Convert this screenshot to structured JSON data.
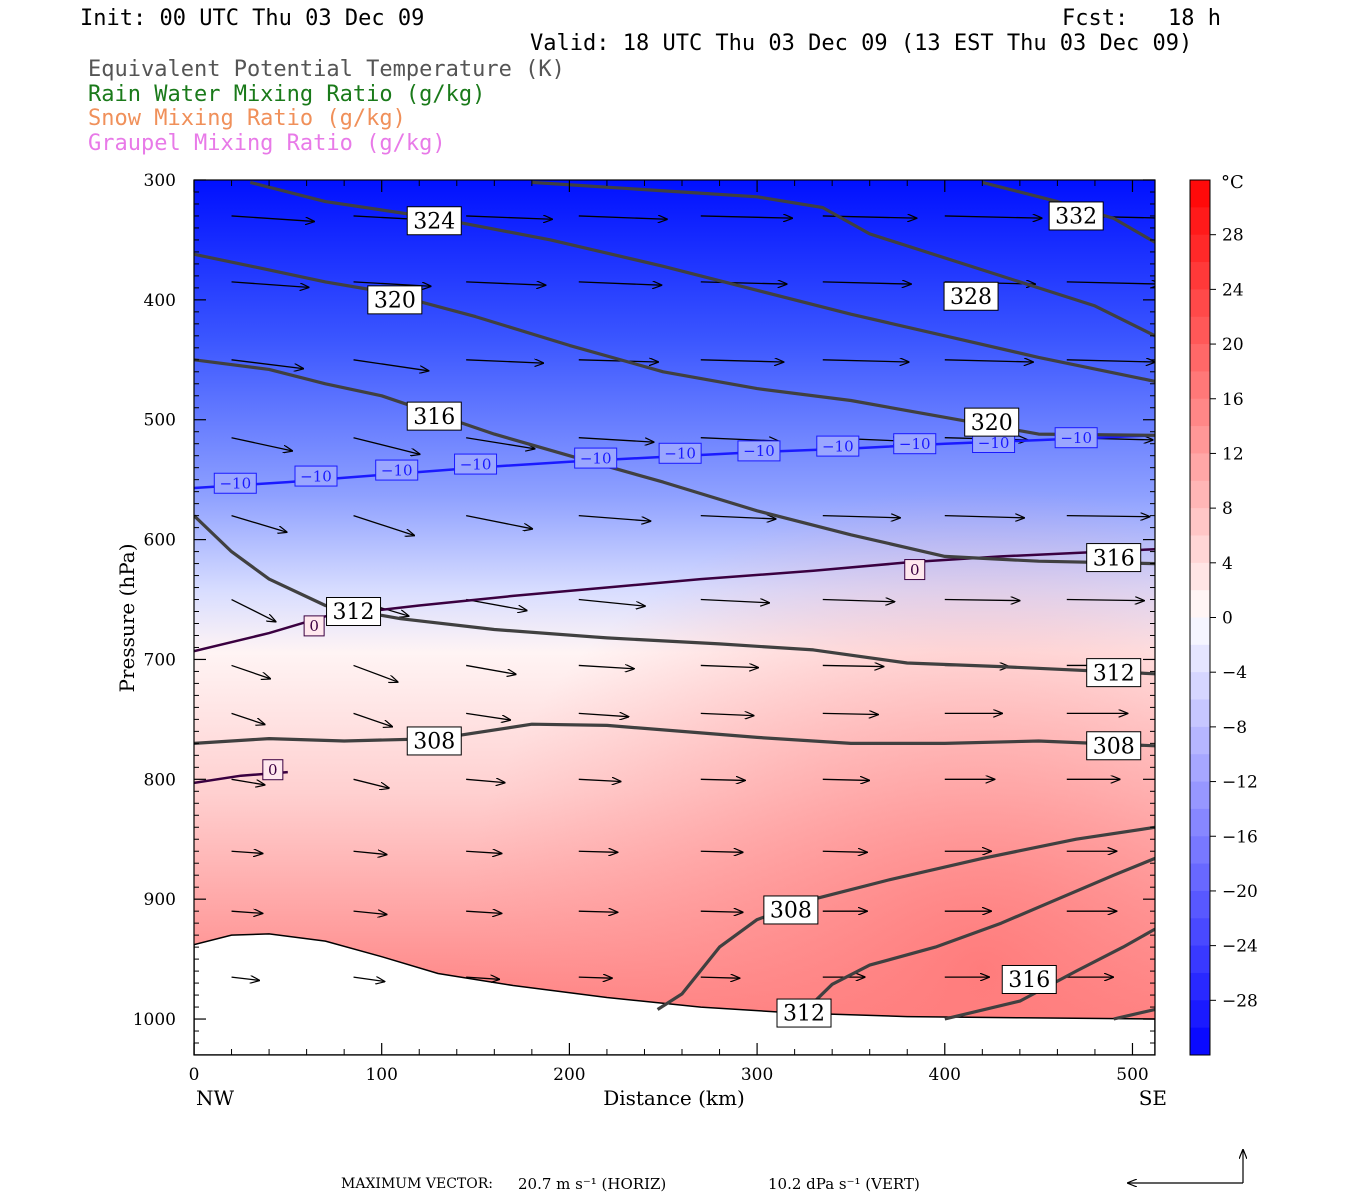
{
  "header": {
    "init": "Init: 00 UTC Thu 03 Dec 09",
    "fcst": "Fcst:   18 h",
    "valid": "Valid: 18 UTC Thu 03 Dec 09 (13 EST Thu 03 Dec 09)"
  },
  "legend": [
    {
      "label": "Equivalent Potential Temperature (K)",
      "color": "#555555"
    },
    {
      "label": "Rain Water Mixing Ratio (g/kg)",
      "color": "#1a7a1a"
    },
    {
      "label": "Snow Mixing Ratio (g/kg)",
      "color": "#f0905a"
    },
    {
      "label": "Graupel Mixing Ratio (g/kg)",
      "color": "#e87ae8"
    }
  ],
  "footer": {
    "max_label": "MAXIMUM VECTOR:",
    "horiz": "20.7 m s⁻¹ (HORIZ)",
    "vert": "10.2 dPa s⁻¹ (VERT)"
  },
  "chart_data": {
    "type": "contour",
    "xlabel": "Distance (km)",
    "ylabel": "Pressure (hPa)",
    "xlim": [
      0,
      512
    ],
    "ylim": [
      1030,
      300
    ],
    "x_ticks": [
      0,
      100,
      200,
      300,
      400,
      500
    ],
    "y_ticks": [
      300,
      400,
      500,
      600,
      700,
      800,
      900,
      1000
    ],
    "x_end_labels": {
      "left": "NW",
      "right": "SE"
    },
    "colorbar": {
      "unit": "°C",
      "tick_labels": [
        "28",
        "24",
        "20",
        "16",
        "12",
        "8",
        "4",
        "0",
        "-4",
        "-8",
        "-12",
        "-16",
        "-20",
        "-24",
        "-28"
      ],
      "range": [
        -32,
        32
      ]
    },
    "temperature_contours": [
      {
        "value": -10,
        "color": "#1a1aff",
        "points": [
          [
            0,
            557
          ],
          [
            50,
            552
          ],
          [
            100,
            546
          ],
          [
            150,
            540
          ],
          [
            200,
            535
          ],
          [
            250,
            531
          ],
          [
            300,
            527
          ],
          [
            350,
            524
          ],
          [
            400,
            520
          ],
          [
            450,
            517
          ],
          [
            512,
            513
          ]
        ],
        "labels": [
          [
            22,
            553
          ],
          [
            65,
            547
          ],
          [
            108,
            542
          ],
          [
            150,
            537
          ],
          [
            214,
            532
          ],
          [
            259,
            528
          ],
          [
            301,
            526
          ],
          [
            343,
            522
          ],
          [
            384,
            520
          ],
          [
            426,
            519
          ],
          [
            470,
            515
          ]
        ],
        "label": "−10"
      },
      {
        "value": 0,
        "color": "#3a0040",
        "points": [
          [
            0,
            693
          ],
          [
            40,
            678
          ],
          [
            70,
            664
          ],
          [
            120,
            655
          ],
          [
            170,
            647
          ],
          [
            220,
            640
          ],
          [
            270,
            633
          ],
          [
            330,
            626
          ],
          [
            380,
            619
          ],
          [
            430,
            614
          ],
          [
            512,
            608
          ]
        ],
        "labels": [
          [
            64,
            672
          ],
          [
            384,
            625
          ]
        ],
        "label": "0"
      },
      {
        "value": 0,
        "color": "#3a0040",
        "points": [
          [
            0,
            803
          ],
          [
            25,
            797
          ],
          [
            50,
            794
          ]
        ],
        "labels": [
          [
            42,
            792
          ]
        ],
        "label": "0"
      }
    ],
    "theta_e_contours": [
      {
        "value": 332,
        "points": [
          [
            420,
            302
          ],
          [
            460,
            318
          ],
          [
            490,
            332
          ],
          [
            512,
            352
          ]
        ],
        "labels": [
          [
            470,
            330
          ]
        ]
      },
      {
        "value": 328,
        "points": [
          [
            180,
            302
          ],
          [
            260,
            310
          ],
          [
            300,
            314
          ],
          [
            335,
            323
          ],
          [
            360,
            345
          ],
          [
            390,
            360
          ],
          [
            420,
            375
          ],
          [
            450,
            390
          ],
          [
            480,
            405
          ],
          [
            512,
            430
          ]
        ],
        "labels": [
          [
            414,
            397
          ]
        ]
      },
      {
        "value": 324,
        "points": [
          [
            30,
            302
          ],
          [
            70,
            318
          ],
          [
            130,
            332
          ],
          [
            190,
            350
          ],
          [
            250,
            372
          ],
          [
            300,
            392
          ],
          [
            350,
            412
          ],
          [
            400,
            430
          ],
          [
            450,
            448
          ],
          [
            512,
            468
          ]
        ],
        "labels": [
          [
            128,
            334
          ]
        ]
      },
      {
        "value": 320,
        "points": [
          [
            0,
            362
          ],
          [
            40,
            375
          ],
          [
            70,
            385
          ],
          [
            100,
            393
          ],
          [
            150,
            414
          ],
          [
            200,
            438
          ],
          [
            250,
            460
          ],
          [
            300,
            474
          ],
          [
            350,
            484
          ],
          [
            400,
            498
          ],
          [
            450,
            512
          ],
          [
            512,
            513
          ]
        ],
        "labels": [
          [
            107,
            400
          ],
          [
            425,
            502
          ]
        ]
      },
      {
        "value": 316,
        "points": [
          [
            0,
            450
          ],
          [
            40,
            458
          ],
          [
            70,
            470
          ],
          [
            100,
            480
          ],
          [
            130,
            496
          ],
          [
            160,
            512
          ],
          [
            200,
            530
          ],
          [
            250,
            552
          ],
          [
            300,
            576
          ],
          [
            350,
            596
          ],
          [
            400,
            614
          ],
          [
            450,
            618
          ],
          [
            512,
            620
          ]
        ],
        "labels": [
          [
            128,
            497
          ],
          [
            490,
            615
          ]
        ]
      },
      {
        "value": 312,
        "points": [
          [
            0,
            580
          ],
          [
            20,
            610
          ],
          [
            40,
            633
          ],
          [
            70,
            655
          ],
          [
            110,
            666
          ],
          [
            160,
            675
          ],
          [
            220,
            682
          ],
          [
            280,
            687
          ],
          [
            330,
            692
          ],
          [
            380,
            703
          ],
          [
            430,
            706
          ],
          [
            512,
            712
          ]
        ],
        "labels": [
          [
            85,
            660
          ],
          [
            490,
            711
          ]
        ]
      },
      {
        "value": 308,
        "points": [
          [
            0,
            770
          ],
          [
            40,
            766
          ],
          [
            80,
            768
          ],
          [
            130,
            766
          ],
          [
            180,
            754
          ],
          [
            220,
            755
          ],
          [
            260,
            760
          ],
          [
            300,
            765
          ],
          [
            350,
            770
          ],
          [
            400,
            770
          ],
          [
            450,
            768
          ],
          [
            512,
            772
          ]
        ],
        "labels": [
          [
            128,
            768
          ],
          [
            490,
            772
          ]
        ]
      },
      {
        "value": 308,
        "points": [
          [
            247,
            992
          ],
          [
            260,
            979
          ],
          [
            280,
            940
          ],
          [
            300,
            917
          ],
          [
            330,
            900
          ],
          [
            370,
            884
          ],
          [
            420,
            866
          ],
          [
            470,
            850
          ],
          [
            512,
            840
          ]
        ],
        "labels": [
          [
            318,
            909
          ]
        ]
      },
      {
        "value": 312,
        "points": [
          [
            325,
            994
          ],
          [
            340,
            971
          ],
          [
            360,
            955
          ],
          [
            395,
            940
          ],
          [
            430,
            920
          ],
          [
            460,
            900
          ],
          [
            490,
            880
          ],
          [
            512,
            866
          ]
        ],
        "labels": [
          [
            325,
            995
          ]
        ]
      },
      {
        "value": 316,
        "points": [
          [
            400,
            1000
          ],
          [
            440,
            985
          ],
          [
            470,
            960
          ],
          [
            495,
            940
          ],
          [
            512,
            925
          ]
        ],
        "labels": [
          [
            445,
            967
          ]
        ]
      },
      {
        "value": 320,
        "points": [
          [
            490,
            1000
          ],
          [
            512,
            992
          ]
        ],
        "labels": []
      }
    ],
    "terrain": [
      [
        0,
        938
      ],
      [
        20,
        930
      ],
      [
        40,
        929
      ],
      [
        70,
        935
      ],
      [
        100,
        948
      ],
      [
        130,
        962
      ],
      [
        170,
        972
      ],
      [
        220,
        982
      ],
      [
        270,
        990
      ],
      [
        320,
        995
      ],
      [
        380,
        998
      ],
      [
        440,
        999
      ],
      [
        512,
        1000
      ]
    ],
    "vectors_row_pressures": [
      330,
      385,
      450,
      515,
      580,
      650,
      705,
      745,
      800,
      860,
      910,
      965
    ],
    "vectors_columns_km": [
      20,
      85,
      145,
      205,
      270,
      335,
      400,
      465
    ],
    "vector_u": [
      [
        7.5,
        7.5,
        7.8,
        8.0,
        8.3,
        8.5,
        8.8,
        9.0
      ],
      [
        7.0,
        7.0,
        7.2,
        7.5,
        7.8,
        8.0,
        8.2,
        8.5
      ],
      [
        6.5,
        6.8,
        7.0,
        7.2,
        7.5,
        7.8,
        8.0,
        8.0
      ],
      [
        5.5,
        6.0,
        6.2,
        6.8,
        7.0,
        7.2,
        7.5,
        7.8
      ],
      [
        5.0,
        5.5,
        6.0,
        6.5,
        6.8,
        7.0,
        7.2,
        7.5
      ],
      [
        4.0,
        5.0,
        5.5,
        6.0,
        6.2,
        6.5,
        6.8,
        7.0
      ],
      [
        3.5,
        4.0,
        4.5,
        5.0,
        5.2,
        5.5,
        5.8,
        6.0
      ],
      [
        3.0,
        3.5,
        4.0,
        4.5,
        4.8,
        5.0,
        5.2,
        5.5
      ],
      [
        3.0,
        3.2,
        3.5,
        3.8,
        4.0,
        4.2,
        4.5,
        4.8
      ],
      [
        2.8,
        3.0,
        3.2,
        3.5,
        3.8,
        4.0,
        4.2,
        4.5
      ],
      [
        2.8,
        3.0,
        3.2,
        3.5,
        3.8,
        4.0,
        4.2,
        4.5
      ],
      [
        2.5,
        2.8,
        3.0,
        3.0,
        3.5,
        3.8,
        4.0,
        4.2
      ]
    ],
    "vector_w": [
      [
        -0.5,
        -0.4,
        -0.3,
        -0.3,
        -0.2,
        -0.2,
        -0.2,
        -0.2
      ],
      [
        -0.5,
        -0.4,
        -0.3,
        -0.3,
        -0.2,
        -0.2,
        -0.2,
        -0.2
      ],
      [
        -0.8,
        -1.0,
        -0.3,
        -0.2,
        -0.2,
        -0.2,
        -0.2,
        -0.2
      ],
      [
        -1.2,
        -1.5,
        -1.0,
        -0.4,
        -0.3,
        -0.3,
        -0.2,
        -0.2
      ],
      [
        -1.5,
        -1.8,
        -1.2,
        -0.5,
        -0.3,
        -0.2,
        -0.2,
        -0.1
      ],
      [
        -2.0,
        -1.5,
        -1.0,
        -0.6,
        -0.3,
        -0.2,
        -0.1,
        -0.1
      ],
      [
        -1.2,
        -1.5,
        -0.8,
        -0.3,
        -0.2,
        -0.1,
        -0.1,
        0.0
      ],
      [
        -1.0,
        -1.2,
        -0.6,
        -0.3,
        -0.2,
        -0.1,
        0.0,
        0.0
      ],
      [
        -0.5,
        -0.8,
        -0.3,
        -0.2,
        -0.1,
        -0.1,
        0.0,
        0.0
      ],
      [
        -0.2,
        -0.3,
        -0.2,
        -0.1,
        -0.1,
        -0.1,
        0.0,
        0.0
      ],
      [
        -0.2,
        -0.3,
        -0.2,
        -0.1,
        -0.1,
        0.0,
        0.0,
        0.0
      ],
      [
        -0.3,
        -0.4,
        -0.2,
        -0.1,
        -0.1,
        0.0,
        0.0,
        0.0
      ]
    ]
  },
  "colors": {
    "cold": "#0000ff",
    "neutral": "#ffffff",
    "warm": "#ff0000",
    "theta_line": "#404040"
  }
}
